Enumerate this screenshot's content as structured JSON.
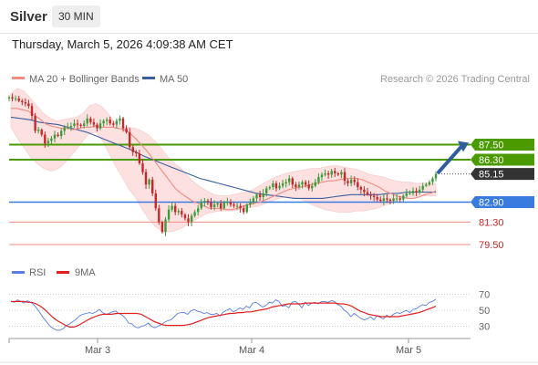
{
  "header": {
    "symbol": "Silver",
    "timeframe": "30 MIN"
  },
  "datetime": "Thursday, March 5, 2026 4:09:38 AM CET",
  "copyright": "Research © 2026 Trading Central",
  "colors": {
    "ma20": "#f28b82",
    "ma50": "#3a5f9e",
    "band_fill": "#fde0e0",
    "resistance": "#4a9a00",
    "pivot": "#3a7be0",
    "support": "#f28b82",
    "bull": "#3c9b3c",
    "bear": "#c62828",
    "arrow": "#2f5d9e",
    "rsi": "#5a7de0",
    "rsi_ma": "#e02020"
  },
  "chart_data": [
    {
      "type": "candlestick",
      "title": "",
      "legend": [
        {
          "name": "MA 20 + Bollinger Bands",
          "color": "#f28b82"
        },
        {
          "name": "MA 50",
          "color": "#3a5f9e"
        }
      ],
      "x_ticks": [
        "Mar 3",
        "Mar 4",
        "Mar 5"
      ],
      "ylim": [
        78.5,
        92.0
      ],
      "levels": [
        {
          "label": "87.50",
          "value": 87.5,
          "kind": "resistance"
        },
        {
          "label": "86.30",
          "value": 86.3,
          "kind": "resistance"
        },
        {
          "label": "85.15",
          "value": 85.15,
          "kind": "last"
        },
        {
          "label": "82.90",
          "value": 82.9,
          "kind": "pivot"
        },
        {
          "label": "81.30",
          "value": 81.3,
          "kind": "support"
        },
        {
          "label": "79.50",
          "value": 79.5,
          "kind": "support"
        }
      ],
      "close_path": [
        91.3,
        91.2,
        91.2,
        91.0,
        90.9,
        90.8,
        90.6,
        89.8,
        88.6,
        88.7,
        88.3,
        87.6,
        87.8,
        88.0,
        88.3,
        88.2,
        88.6,
        88.9,
        88.9,
        89.0,
        89.2,
        89.1,
        89.0,
        89.2,
        89.6,
        89.3,
        89.1,
        88.8,
        89.2,
        89.4,
        89.5,
        89.2,
        89.1,
        89.4,
        89.6,
        88.8,
        88.5,
        87.3,
        86.9,
        86.8,
        86.0,
        85.3,
        84.3,
        84.7,
        83.6,
        82.4,
        81.3,
        80.5,
        81.5,
        82.3,
        82.6,
        82.1,
        82.2,
        81.9,
        81.6,
        81.3,
        81.8,
        82.1,
        82.4,
        82.9,
        83.0,
        82.9,
        82.5,
        82.7,
        82.8,
        82.4,
        82.9,
        82.9,
        82.7,
        82.6,
        82.6,
        82.4,
        82.1,
        82.7,
        82.9,
        83.2,
        83.5,
        83.3,
        83.6,
        84.0,
        84.1,
        84.4,
        84.0,
        84.2,
        84.4,
        84.5,
        84.8,
        84.3,
        84.1,
        84.3,
        84.5,
        84.3,
        84.0,
        84.2,
        84.5,
        84.9,
        85.1,
        85.2,
        85.1,
        85.4,
        85.2,
        85.1,
        85.3,
        84.6,
        84.4,
        84.7,
        84.5,
        84.1,
        83.9,
        83.7,
        83.5,
        83.4,
        83.3,
        83.1,
        83.0,
        83.2,
        83.1,
        83.0,
        83.2,
        83.2,
        83.1,
        83.4,
        83.6,
        83.6,
        83.8,
        83.7,
        83.9,
        84.2,
        84.3,
        84.5,
        84.8,
        85.15
      ],
      "ma20_path": [
        90.4,
        90.4,
        90.3,
        90.2,
        89.9,
        89.6,
        89.2,
        89.0,
        88.9,
        88.8,
        88.8,
        88.7,
        88.8,
        88.9,
        88.9,
        89.0,
        88.9,
        88.9,
        88.9,
        88.8,
        88.7,
        88.4,
        88.0,
        87.5,
        87.0,
        86.4,
        85.8,
        85.2,
        84.6,
        84.0,
        83.6,
        83.3,
        83.0,
        82.8,
        82.6,
        82.4,
        82.4,
        82.4,
        82.3,
        82.3,
        82.4,
        82.6,
        82.7,
        82.8,
        82.9,
        83.1,
        83.3,
        83.5,
        83.7,
        83.9,
        84.0,
        84.1,
        84.2,
        84.3,
        84.4,
        84.5,
        84.6,
        84.6,
        84.7,
        84.8,
        84.8,
        84.8,
        84.7,
        84.5,
        84.3,
        84.1,
        83.8,
        83.6,
        83.4,
        83.3,
        83.2,
        83.2,
        83.3,
        83.5,
        83.6,
        83.8
      ],
      "upper_band": [
        91.6,
        92.0,
        91.8,
        91.2,
        90.6,
        90.0,
        89.6,
        89.4,
        89.5,
        89.6,
        89.7,
        90.0,
        90.6,
        90.8,
        90.5,
        89.9,
        89.2,
        88.9,
        88.9,
        88.8,
        88.6,
        88.3,
        87.8,
        87.2,
        86.5,
        86.0,
        85.6,
        85.0,
        84.5,
        84.1,
        83.8,
        83.5,
        83.4,
        83.4,
        83.5,
        83.6,
        83.7,
        83.9,
        84.2,
        84.5,
        84.8,
        85.0,
        85.2,
        85.3,
        85.4,
        85.5,
        85.6,
        85.6,
        85.7,
        85.8,
        85.8,
        85.7,
        85.6,
        85.5,
        85.3,
        85.1,
        85.0,
        84.9,
        84.7,
        84.6,
        84.5,
        84.5,
        84.4,
        84.4,
        84.4,
        84.4
      ],
      "lower_band": [
        88.9,
        88.0,
        87.3,
        86.5,
        86.0,
        85.6,
        85.4,
        85.5,
        85.9,
        86.5,
        87.1,
        87.8,
        88.4,
        88.5,
        87.8,
        86.8,
        85.8,
        84.9,
        84.0,
        83.3,
        82.4,
        81.6,
        81.0,
        80.6,
        80.5,
        80.6,
        80.8,
        81.1,
        81.4,
        81.7,
        82.0,
        82.1,
        82.2,
        82.2,
        82.2,
        82.3,
        82.4,
        82.5,
        82.6,
        82.8,
        83.0,
        83.2,
        83.3,
        83.3,
        83.2,
        83.0,
        82.7,
        82.5,
        82.3,
        82.2,
        82.1,
        82.1,
        82.1,
        82.2,
        82.2,
        82.3,
        82.4,
        82.6,
        82.8,
        83.0,
        83.2,
        83.3,
        83.3,
        83.4,
        83.4,
        83.4
      ],
      "ma50_path": [
        89.7,
        89.6,
        89.5,
        89.3,
        89.2,
        89.1,
        88.9,
        88.7,
        88.5,
        88.2,
        87.9,
        87.6,
        87.3,
        87.0,
        86.6,
        86.3,
        86.0,
        85.7,
        85.4,
        85.1,
        84.8,
        84.6,
        84.4,
        84.2,
        84.0,
        83.8,
        83.6,
        83.5,
        83.4,
        83.3,
        83.2,
        83.2,
        83.2,
        83.2,
        83.3,
        83.4,
        83.5,
        83.5,
        83.5,
        83.5,
        83.6,
        83.6,
        83.7,
        83.7,
        83.7,
        83.7
      ]
    },
    {
      "type": "line",
      "title": "",
      "legend": [
        {
          "name": "RSI",
          "color": "#5a7de0"
        },
        {
          "name": "9MA",
          "color": "#e02020"
        }
      ],
      "y_ticks": [
        "70",
        "50",
        "30"
      ],
      "ylim": [
        18,
        82
      ],
      "rsi": [
        61,
        60,
        63,
        61,
        59,
        62,
        60,
        57,
        52,
        46,
        40,
        35,
        30,
        27,
        25,
        25,
        27,
        31,
        33,
        36,
        39,
        43,
        45,
        46,
        47,
        46,
        48,
        51,
        47,
        45,
        46,
        48,
        49,
        46,
        44,
        40,
        34,
        33,
        29,
        28,
        30,
        31,
        34,
        30,
        28,
        30,
        32,
        35,
        37,
        38,
        42,
        46,
        47,
        47,
        45,
        49,
        51,
        49,
        48,
        46,
        47,
        45,
        45,
        46,
        43,
        48,
        50,
        52,
        48,
        50,
        53,
        51,
        55,
        53,
        59,
        60,
        57,
        54,
        56,
        60,
        59,
        63,
        61,
        55,
        56,
        53,
        60,
        61,
        58,
        53,
        60,
        56,
        59,
        60,
        58,
        61,
        61,
        60,
        62,
        61,
        57,
        55,
        50,
        47,
        42,
        46,
        43,
        40,
        38,
        39,
        42,
        38,
        43,
        41,
        39,
        44,
        41,
        45,
        47,
        46,
        48,
        50,
        47,
        51,
        52,
        55,
        57,
        56,
        60,
        61,
        64
      ],
      "rsi_ma": [
        61,
        61,
        61,
        61,
        60,
        60,
        58,
        55,
        51,
        46,
        41,
        37,
        34,
        31,
        29,
        29,
        31,
        34,
        37,
        40,
        42,
        44,
        45,
        45,
        45,
        46,
        46,
        46,
        46,
        46,
        46,
        45,
        42,
        39,
        36,
        34,
        32,
        31,
        31,
        31,
        31,
        31,
        32,
        33,
        35,
        37,
        39,
        41,
        42,
        43,
        44,
        45,
        46,
        46,
        47,
        47,
        48,
        48,
        49,
        50,
        51,
        52,
        54,
        55,
        56,
        57,
        58,
        58,
        58,
        58,
        59,
        59,
        59,
        59,
        59,
        59,
        59,
        59,
        58,
        58,
        57,
        55,
        52,
        49,
        47,
        45,
        44,
        43,
        42,
        42,
        42,
        42,
        42,
        43,
        44,
        45,
        46,
        47,
        49,
        51,
        53,
        55
      ]
    }
  ]
}
